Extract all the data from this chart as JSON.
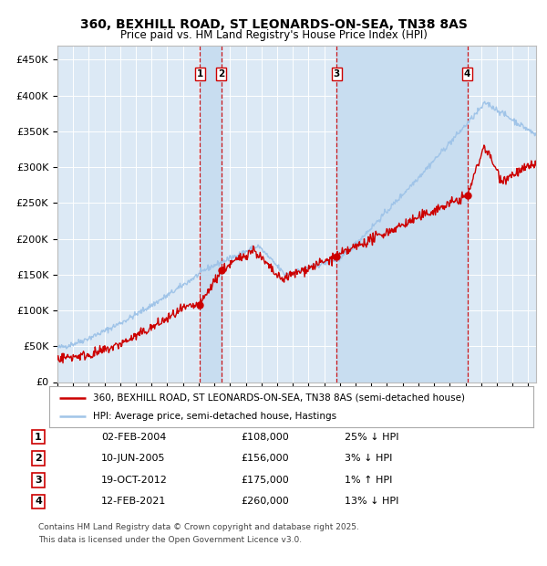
{
  "title": "360, BEXHILL ROAD, ST LEONARDS-ON-SEA, TN38 8AS",
  "subtitle": "Price paid vs. HM Land Registry's House Price Index (HPI)",
  "background_color": "#ffffff",
  "plot_bg_color": "#dce9f5",
  "grid_color": "#ffffff",
  "hpi_color": "#a0c4e8",
  "price_color": "#cc0000",
  "sale_dot_color": "#cc0000",
  "vline_color": "#cc0000",
  "shade_color": "#c8ddf0",
  "ylim": [
    0,
    470000
  ],
  "yticks": [
    0,
    50000,
    100000,
    150000,
    200000,
    250000,
    300000,
    350000,
    400000,
    450000
  ],
  "ytick_labels": [
    "£0",
    "£50K",
    "£100K",
    "£150K",
    "£200K",
    "£250K",
    "£300K",
    "£350K",
    "£400K",
    "£450K"
  ],
  "xlim_start": 1995,
  "xlim_end": 2025.5,
  "sales": [
    {
      "label": "1",
      "date": "02-FEB-2004",
      "year": 2004.09,
      "price": 108000,
      "pct": "25%",
      "dir": "↓",
      "rel": "HPI"
    },
    {
      "label": "2",
      "date": "10-JUN-2005",
      "year": 2005.44,
      "price": 156000,
      "pct": "3%",
      "dir": "↓",
      "rel": "HPI"
    },
    {
      "label": "3",
      "date": "19-OCT-2012",
      "year": 2012.8,
      "price": 175000,
      "pct": "1%",
      "dir": "↑",
      "rel": "HPI"
    },
    {
      "label": "4",
      "date": "12-FEB-2021",
      "year": 2021.12,
      "price": 260000,
      "pct": "13%",
      "dir": "↓",
      "rel": "HPI"
    }
  ],
  "legend_line1": "360, BEXHILL ROAD, ST LEONARDS-ON-SEA, TN38 8AS (semi-detached house)",
  "legend_line2": "HPI: Average price, semi-detached house, Hastings",
  "table_rows": [
    [
      "1",
      "02-FEB-2004",
      "£108,000",
      "25% ↓ HPI"
    ],
    [
      "2",
      "10-JUN-2005",
      "£156,000",
      "3% ↓ HPI"
    ],
    [
      "3",
      "19-OCT-2012",
      "£175,000",
      "1% ↑ HPI"
    ],
    [
      "4",
      "12-FEB-2021",
      "£260,000",
      "13% ↓ HPI"
    ]
  ],
  "footnote_line1": "Contains HM Land Registry data © Crown copyright and database right 2025.",
  "footnote_line2": "This data is licensed under the Open Government Licence v3.0."
}
